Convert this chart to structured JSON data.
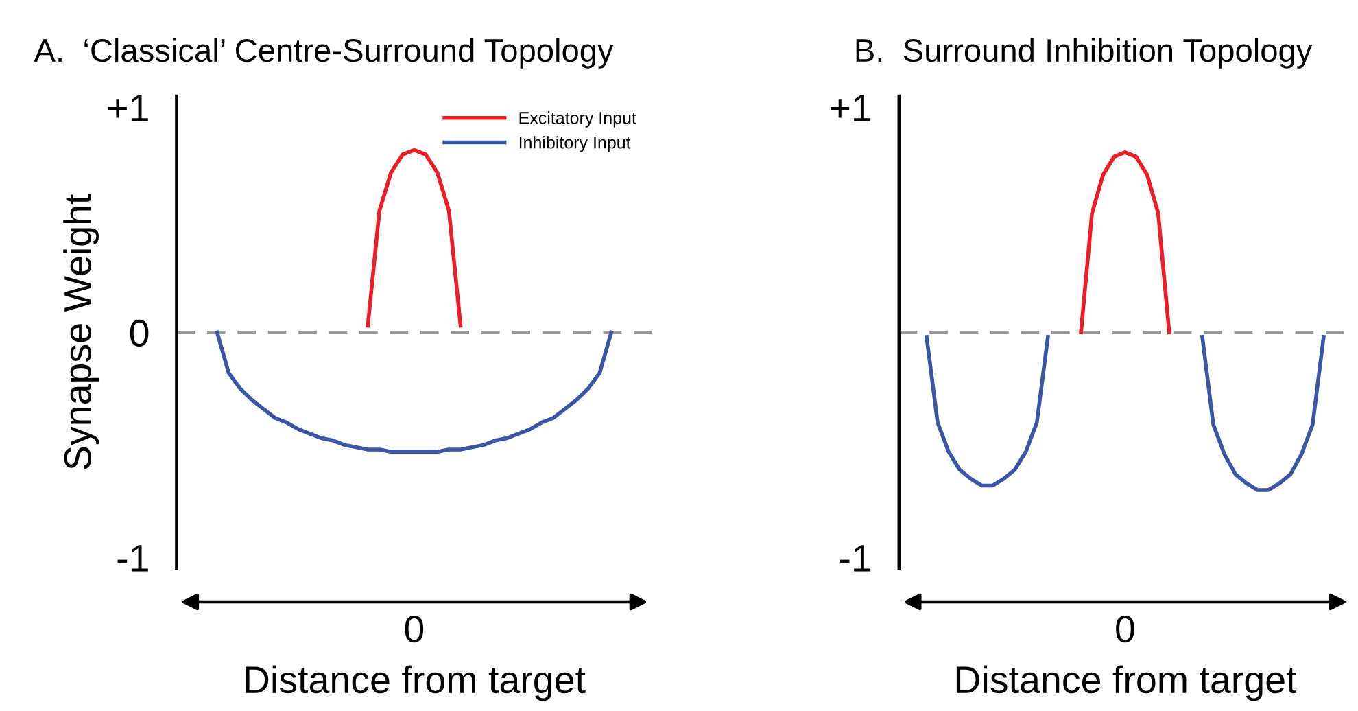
{
  "chart_data": [
    {
      "type": "line",
      "title": "A.  ‘Classical’ Centre-Surround Topology",
      "xlabel": "Distance from target",
      "ylabel": "Synapse Weight",
      "categories": [
        null,
        null,
        null,
        null,
        null,
        null,
        null,
        null,
        null,
        null,
        null,
        null,
        null,
        null,
        null,
        null,
        null,
        null,
        null,
        null,
        "0",
        null,
        null,
        null,
        null,
        null,
        null,
        null,
        null,
        null,
        null,
        null,
        null,
        null,
        null,
        null,
        null,
        null,
        null,
        null,
        null
      ],
      "ylim": [
        -1.05,
        1.05
      ],
      "yticks": [
        {
          "value": 1,
          "label": "+1"
        },
        {
          "value": 0,
          "label": "0"
        },
        {
          "value": -1,
          "label": "-1"
        }
      ],
      "legend": "top right",
      "grid": false,
      "ref_lines": [
        {
          "axis": "y",
          "value": 0,
          "color": "#999999",
          "line_style": "dashed"
        }
      ],
      "series": [
        {
          "name": "Excitatory Input",
          "color": "#ee1c25",
          "values": [
            null,
            null,
            null,
            null,
            null,
            null,
            null,
            null,
            null,
            null,
            null,
            null,
            null,
            null,
            null,
            null,
            0.03,
            0.54,
            0.71,
            0.79,
            0.81,
            0.79,
            0.71,
            0.54,
            0.03,
            null,
            null,
            null,
            null,
            null,
            null,
            null,
            null,
            null,
            null,
            null,
            null,
            null,
            null,
            null,
            null
          ]
        },
        {
          "name": "Inhibitory Input",
          "color": "#3a57a7",
          "values": [
            null,
            null,
            null,
            0,
            -0.18,
            -0.25,
            -0.3,
            -0.34,
            -0.38,
            -0.4,
            -0.43,
            -0.45,
            -0.47,
            -0.48,
            -0.5,
            -0.51,
            -0.52,
            -0.52,
            -0.53,
            -0.53,
            -0.53,
            -0.53,
            -0.53,
            -0.52,
            -0.52,
            -0.51,
            -0.5,
            -0.48,
            -0.47,
            -0.45,
            -0.43,
            -0.4,
            -0.38,
            -0.34,
            -0.3,
            -0.25,
            -0.18,
            0,
            null,
            null,
            null
          ]
        }
      ]
    },
    {
      "type": "line",
      "title": "B.  Surround Inhibition Topology",
      "xlabel": "Distance from target",
      "categories": [
        null,
        null,
        null,
        null,
        null,
        null,
        null,
        null,
        null,
        null,
        null,
        null,
        null,
        null,
        null,
        null,
        null,
        null,
        null,
        null,
        "0",
        null,
        null,
        null,
        null,
        null,
        null,
        null,
        null,
        null,
        null,
        null,
        null,
        null,
        null,
        null,
        null,
        null,
        null,
        null,
        null
      ],
      "ylim": [
        -1.05,
        1.05
      ],
      "yticks": [
        {
          "value": 1,
          "label": "+1"
        },
        {
          "value": -1,
          "label": "-1"
        }
      ],
      "grid": false,
      "ref_lines": [
        {
          "axis": "y",
          "value": 0,
          "color": "#999999",
          "line_style": "dashed"
        }
      ],
      "series": [
        {
          "color": "#ee1c25",
          "values": [
            null,
            null,
            null,
            null,
            null,
            null,
            null,
            null,
            null,
            null,
            null,
            null,
            null,
            null,
            null,
            null,
            0,
            0.53,
            0.7,
            0.78,
            0.8,
            0.78,
            0.7,
            0.53,
            0,
            null,
            null,
            null,
            null,
            null,
            null,
            null,
            null,
            null,
            null,
            null,
            null,
            null,
            null,
            null,
            null
          ]
        },
        {
          "color": "#3a57a7",
          "values": [
            null,
            null,
            -0.02,
            -0.4,
            -0.53,
            -0.61,
            -0.65,
            -0.68,
            -0.68,
            -0.65,
            -0.61,
            -0.53,
            -0.4,
            -0.02,
            null,
            null,
            null,
            null,
            null,
            null,
            null,
            null,
            null,
            null,
            null,
            null,
            null,
            null,
            null,
            null,
            null,
            null,
            null,
            null,
            null,
            null,
            null,
            null,
            null,
            null,
            null
          ]
        },
        {
          "color": "#3a57a7",
          "values": [
            null,
            null,
            null,
            null,
            null,
            null,
            null,
            null,
            null,
            null,
            null,
            null,
            null,
            null,
            null,
            null,
            null,
            null,
            null,
            null,
            null,
            null,
            null,
            null,
            null,
            null,
            null,
            -0.02,
            -0.41,
            -0.54,
            -0.63,
            -0.67,
            -0.7,
            -0.7,
            -0.67,
            -0.63,
            -0.54,
            -0.41,
            -0.02,
            null,
            null
          ]
        }
      ]
    }
  ]
}
